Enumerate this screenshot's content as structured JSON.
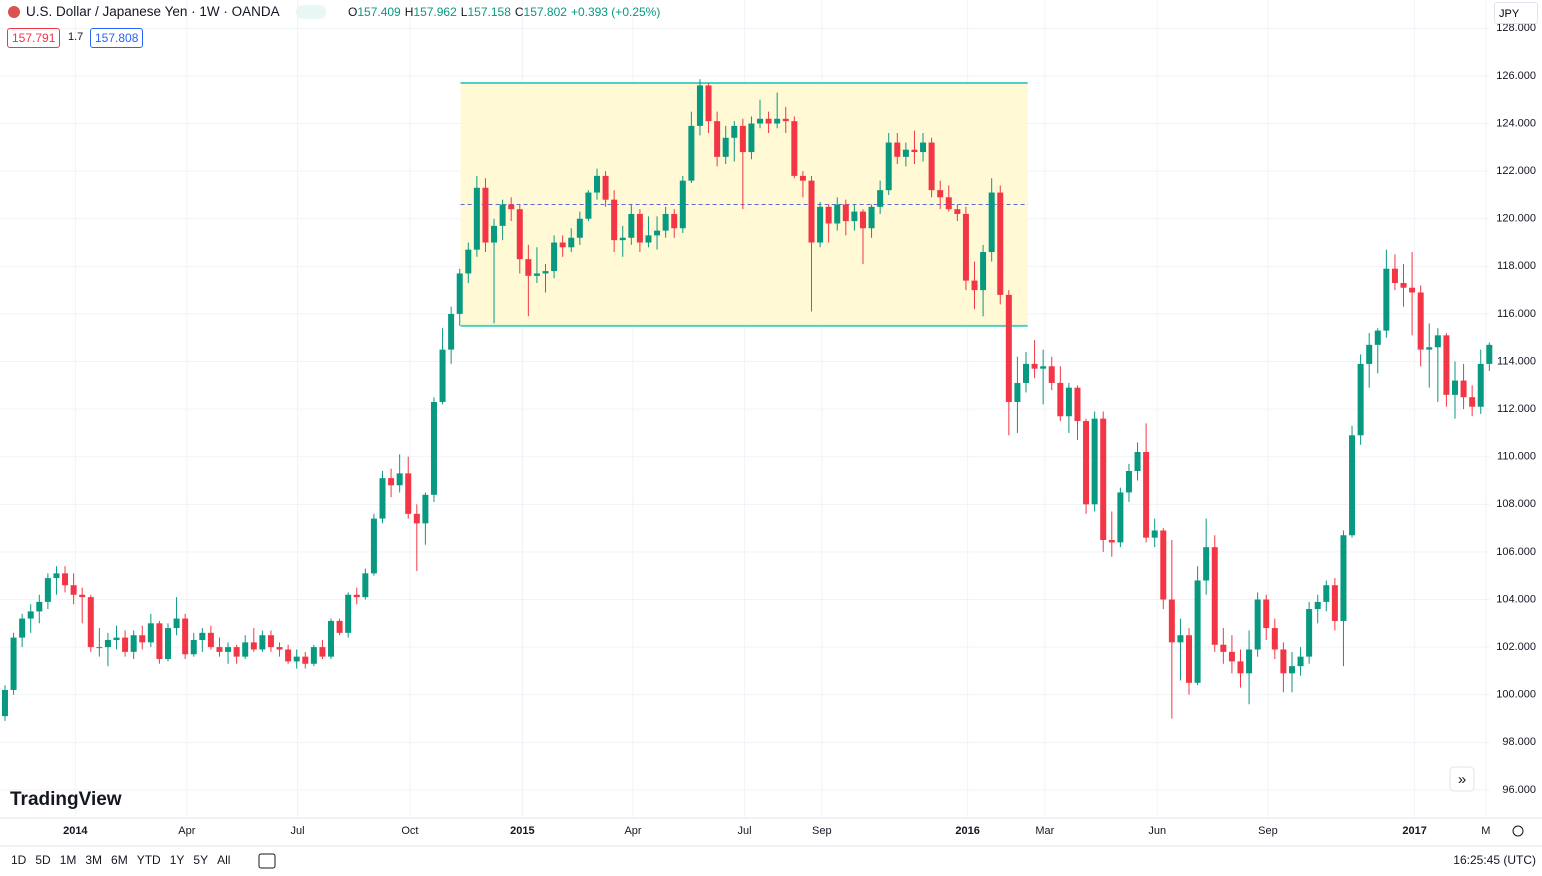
{
  "header": {
    "symbol": "U.S. Dollar / Japanese Yen · 1W · OANDA",
    "ohlc": [
      {
        "label": "O",
        "value": "157.409"
      },
      {
        "label": "H",
        "value": "157.962"
      },
      {
        "label": "L",
        "value": "157.158"
      },
      {
        "label": "C",
        "value": "157.802"
      }
    ],
    "change": "+0.393 (+0.25%)",
    "sell": "157.791",
    "spread": "1.7",
    "buy": "157.808",
    "currency": "JPY"
  },
  "chart_data": {
    "type": "candlestick",
    "up_color": "#089981",
    "down_color": "#f23645",
    "grid": true,
    "xlim": [
      -0.58,
      173.08
    ],
    "ylim": [
      94.82,
      129.19
    ],
    "yticks": [
      {
        "value": 96,
        "label": "96.000"
      },
      {
        "value": 98,
        "label": "98.000"
      },
      {
        "value": 100,
        "label": "100.000"
      },
      {
        "value": 102,
        "label": "102.000"
      },
      {
        "value": 104,
        "label": "104.000"
      },
      {
        "value": 106,
        "label": "106.000"
      },
      {
        "value": 108,
        "label": "108.000"
      },
      {
        "value": 110,
        "label": "110.000"
      },
      {
        "value": 112,
        "label": "112.000"
      },
      {
        "value": 114,
        "label": "114.000"
      },
      {
        "value": 116,
        "label": "116.000"
      },
      {
        "value": 118,
        "label": "118.000"
      },
      {
        "value": 120,
        "label": "120.000"
      },
      {
        "value": 122,
        "label": "122.000"
      },
      {
        "value": 124,
        "label": "124.000"
      },
      {
        "value": 126,
        "label": "126.000"
      },
      {
        "value": 128,
        "label": "128.000"
      }
    ],
    "xticks": [
      {
        "value": 8.2,
        "label": "2014"
      },
      {
        "value": 21.2,
        "label": "Apr"
      },
      {
        "value": 34.1,
        "label": "Jul"
      },
      {
        "value": 47.2,
        "label": "Oct"
      },
      {
        "value": 60.3,
        "label": "2015"
      },
      {
        "value": 73.2,
        "label": "Apr"
      },
      {
        "value": 86.2,
        "label": "Jul"
      },
      {
        "value": 95.2,
        "label": "Sep"
      },
      {
        "value": 112.2,
        "label": "2016"
      },
      {
        "value": 121.2,
        "label": "Mar"
      },
      {
        "value": 134.3,
        "label": "Jun"
      },
      {
        "value": 147.2,
        "label": "Sep"
      },
      {
        "value": 164.3,
        "label": "2017"
      },
      {
        "value": 172.6,
        "label": "M"
      }
    ],
    "range_box": {
      "start": 53.1,
      "end": 119.2,
      "top": 125.7,
      "bottom": 115.5,
      "mid": 120.6,
      "color": "#4dd0c6",
      "fill": "#fff9d6",
      "mid_color": "#5c6bd6"
    },
    "candles": [
      [
        99.1,
        100.4,
        98.9,
        100.2
      ],
      [
        100.2,
        102.6,
        100.0,
        102.4
      ],
      [
        102.4,
        103.4,
        102.0,
        103.2
      ],
      [
        103.2,
        103.8,
        102.6,
        103.5
      ],
      [
        103.5,
        104.2,
        103.0,
        103.9
      ],
      [
        103.9,
        105.1,
        103.6,
        104.9
      ],
      [
        104.9,
        105.4,
        104.2,
        105.1
      ],
      [
        105.1,
        105.4,
        104.3,
        104.6
      ],
      [
        104.6,
        105.1,
        103.8,
        104.2
      ],
      [
        104.2,
        104.5,
        103.0,
        104.1
      ],
      [
        104.1,
        104.2,
        101.8,
        102.0
      ],
      [
        102.0,
        102.8,
        101.6,
        102.0
      ],
      [
        102.0,
        102.6,
        101.2,
        102.3
      ],
      [
        102.3,
        102.9,
        101.9,
        102.4
      ],
      [
        102.4,
        102.7,
        101.6,
        101.8
      ],
      [
        101.8,
        102.7,
        101.5,
        102.5
      ],
      [
        102.5,
        102.9,
        101.9,
        102.2
      ],
      [
        102.2,
        103.4,
        102.0,
        103.0
      ],
      [
        103.0,
        103.1,
        101.3,
        101.5
      ],
      [
        101.5,
        103.0,
        101.4,
        102.8
      ],
      [
        102.8,
        104.1,
        102.5,
        103.2
      ],
      [
        103.2,
        103.4,
        101.5,
        101.7
      ],
      [
        101.7,
        102.6,
        101.6,
        102.3
      ],
      [
        102.3,
        102.8,
        101.8,
        102.6
      ],
      [
        102.6,
        102.9,
        101.9,
        102.0
      ],
      [
        102.0,
        102.4,
        101.6,
        101.8
      ],
      [
        101.8,
        102.2,
        101.3,
        102.0
      ],
      [
        102.0,
        102.1,
        101.3,
        101.6
      ],
      [
        101.6,
        102.5,
        101.5,
        102.2
      ],
      [
        102.2,
        102.8,
        101.8,
        101.9
      ],
      [
        101.9,
        102.7,
        101.8,
        102.5
      ],
      [
        102.5,
        102.7,
        101.8,
        102.0
      ],
      [
        102.0,
        102.2,
        101.6,
        101.9
      ],
      [
        101.9,
        102.1,
        101.3,
        101.4
      ],
      [
        101.4,
        101.9,
        101.1,
        101.6
      ],
      [
        101.6,
        101.8,
        101.1,
        101.3
      ],
      [
        101.3,
        102.1,
        101.2,
        102.0
      ],
      [
        102.0,
        102.3,
        101.5,
        101.6
      ],
      [
        101.6,
        103.2,
        101.5,
        103.1
      ],
      [
        103.1,
        103.2,
        102.5,
        102.6
      ],
      [
        102.6,
        104.3,
        102.4,
        104.2
      ],
      [
        104.2,
        104.5,
        103.8,
        104.1
      ],
      [
        104.1,
        105.3,
        104.0,
        105.1
      ],
      [
        105.1,
        107.6,
        105.0,
        107.4
      ],
      [
        107.4,
        109.4,
        107.2,
        109.1
      ],
      [
        109.1,
        109.5,
        108.3,
        108.8
      ],
      [
        108.8,
        110.1,
        108.5,
        109.3
      ],
      [
        109.3,
        110.0,
        107.4,
        107.6
      ],
      [
        107.6,
        108.0,
        105.2,
        107.2
      ],
      [
        107.2,
        108.5,
        106.3,
        108.4
      ],
      [
        108.4,
        112.5,
        108.1,
        112.3
      ],
      [
        112.3,
        115.4,
        112.2,
        114.5
      ],
      [
        114.5,
        116.3,
        113.9,
        116.0
      ],
      [
        116.0,
        117.9,
        115.5,
        117.7
      ],
      [
        117.7,
        119.0,
        117.3,
        118.7
      ],
      [
        118.7,
        121.8,
        118.4,
        121.3
      ],
      [
        121.3,
        121.7,
        118.6,
        119.0
      ],
      [
        119.0,
        120.0,
        115.6,
        119.7
      ],
      [
        119.7,
        120.8,
        119.1,
        120.6
      ],
      [
        120.6,
        120.9,
        119.9,
        120.4
      ],
      [
        120.4,
        120.6,
        117.7,
        118.3
      ],
      [
        118.3,
        118.9,
        115.9,
        117.6
      ],
      [
        117.6,
        118.8,
        117.3,
        117.7
      ],
      [
        117.7,
        118.1,
        116.9,
        117.8
      ],
      [
        117.8,
        119.3,
        117.5,
        119.0
      ],
      [
        119.0,
        119.3,
        118.4,
        118.8
      ],
      [
        118.8,
        119.6,
        118.6,
        119.2
      ],
      [
        119.2,
        120.3,
        118.9,
        120.0
      ],
      [
        120.0,
        121.2,
        119.9,
        121.1
      ],
      [
        121.1,
        122.1,
        120.8,
        121.8
      ],
      [
        121.8,
        122.0,
        120.5,
        120.8
      ],
      [
        120.8,
        121.2,
        118.6,
        119.1
      ],
      [
        119.1,
        119.7,
        118.4,
        119.2
      ],
      [
        119.2,
        120.6,
        118.9,
        120.2
      ],
      [
        120.2,
        120.4,
        118.6,
        119.0
      ],
      [
        119.0,
        120.1,
        118.8,
        119.3
      ],
      [
        119.3,
        120.1,
        118.7,
        119.5
      ],
      [
        119.5,
        120.5,
        119.2,
        120.2
      ],
      [
        120.2,
        120.4,
        119.2,
        119.6
      ],
      [
        119.6,
        121.8,
        119.4,
        121.6
      ],
      [
        121.6,
        124.5,
        121.5,
        123.9
      ],
      [
        123.9,
        125.86,
        123.5,
        125.6
      ],
      [
        125.6,
        125.7,
        123.6,
        124.1
      ],
      [
        124.1,
        124.5,
        122.2,
        122.6
      ],
      [
        122.6,
        123.9,
        122.3,
        123.4
      ],
      [
        123.4,
        124.1,
        122.4,
        123.9
      ],
      [
        123.9,
        124.2,
        120.4,
        122.8
      ],
      [
        122.8,
        124.3,
        122.5,
        124.0
      ],
      [
        124.0,
        125.0,
        123.8,
        124.2
      ],
      [
        124.2,
        124.5,
        123.6,
        124.0
      ],
      [
        124.0,
        125.3,
        123.8,
        124.2
      ],
      [
        124.2,
        124.7,
        123.6,
        124.1
      ],
      [
        124.1,
        124.3,
        121.7,
        121.8
      ],
      [
        121.8,
        122.0,
        120.9,
        121.6
      ],
      [
        121.6,
        121.8,
        116.1,
        119.0
      ],
      [
        119.0,
        120.7,
        118.8,
        120.5
      ],
      [
        120.5,
        120.6,
        119.0,
        119.8
      ],
      [
        119.8,
        120.9,
        119.5,
        120.6
      ],
      [
        120.6,
        120.8,
        119.3,
        119.9
      ],
      [
        119.9,
        120.6,
        119.5,
        120.3
      ],
      [
        120.3,
        120.4,
        118.1,
        119.6
      ],
      [
        119.6,
        120.6,
        119.2,
        120.5
      ],
      [
        120.5,
        121.6,
        120.2,
        121.2
      ],
      [
        121.2,
        123.6,
        121.0,
        123.2
      ],
      [
        123.2,
        123.6,
        122.3,
        122.6
      ],
      [
        122.6,
        123.2,
        122.2,
        122.9
      ],
      [
        122.9,
        123.7,
        122.3,
        122.8
      ],
      [
        122.8,
        123.6,
        122.4,
        123.2
      ],
      [
        123.2,
        123.4,
        120.9,
        121.2
      ],
      [
        121.2,
        121.6,
        120.4,
        120.9
      ],
      [
        120.9,
        121.4,
        120.3,
        120.4
      ],
      [
        120.4,
        120.6,
        119.9,
        120.2
      ],
      [
        120.2,
        120.5,
        117.0,
        117.4
      ],
      [
        117.4,
        118.2,
        116.2,
        117.0
      ],
      [
        117.0,
        118.9,
        115.9,
        118.6
      ],
      [
        118.6,
        121.7,
        118.2,
        121.1
      ],
      [
        121.1,
        121.4,
        116.4,
        116.8
      ],
      [
        116.8,
        117.0,
        110.9,
        112.3
      ],
      [
        112.3,
        114.2,
        111.0,
        113.1
      ],
      [
        113.1,
        114.4,
        112.7,
        113.9
      ],
      [
        113.9,
        114.9,
        113.3,
        113.7
      ],
      [
        113.7,
        114.5,
        112.2,
        113.8
      ],
      [
        113.8,
        114.2,
        112.8,
        113.1
      ],
      [
        113.1,
        113.8,
        111.5,
        111.7
      ],
      [
        111.7,
        113.1,
        111.0,
        112.9
      ],
      [
        112.9,
        113.0,
        110.7,
        111.5
      ],
      [
        111.5,
        111.6,
        107.6,
        108.0
      ],
      [
        108.0,
        111.9,
        107.7,
        111.6
      ],
      [
        111.6,
        111.9,
        106.0,
        106.5
      ],
      [
        106.5,
        107.7,
        105.8,
        106.4
      ],
      [
        106.4,
        108.7,
        106.2,
        108.5
      ],
      [
        108.5,
        109.7,
        108.1,
        109.4
      ],
      [
        109.4,
        110.6,
        109.0,
        110.2
      ],
      [
        110.2,
        111.4,
        106.4,
        106.6
      ],
      [
        106.6,
        107.4,
        106.2,
        106.9
      ],
      [
        106.9,
        107.0,
        103.6,
        104.0
      ],
      [
        104.0,
        106.5,
        99.0,
        102.2
      ],
      [
        102.2,
        103.2,
        100.6,
        102.5
      ],
      [
        102.5,
        102.8,
        100.0,
        100.5
      ],
      [
        100.5,
        105.4,
        100.4,
        104.8
      ],
      [
        104.8,
        107.4,
        104.2,
        106.2
      ],
      [
        106.2,
        106.7,
        101.8,
        102.1
      ],
      [
        102.1,
        102.8,
        101.3,
        101.8
      ],
      [
        101.8,
        102.5,
        100.9,
        101.4
      ],
      [
        101.4,
        101.9,
        100.3,
        100.9
      ],
      [
        100.9,
        102.7,
        99.6,
        101.9
      ],
      [
        101.9,
        104.3,
        101.6,
        104.0
      ],
      [
        104.0,
        104.2,
        102.3,
        102.8
      ],
      [
        102.8,
        103.2,
        101.5,
        101.9
      ],
      [
        101.9,
        102.2,
        100.1,
        100.9
      ],
      [
        100.9,
        101.8,
        100.1,
        101.2
      ],
      [
        101.2,
        102.0,
        100.8,
        101.6
      ],
      [
        101.6,
        103.9,
        101.3,
        103.6
      ],
      [
        103.6,
        104.2,
        103.0,
        103.9
      ],
      [
        103.9,
        104.8,
        103.5,
        104.6
      ],
      [
        104.6,
        104.9,
        102.7,
        103.1
      ],
      [
        103.1,
        106.9,
        101.2,
        106.7
      ],
      [
        106.7,
        111.3,
        106.6,
        110.9
      ],
      [
        110.9,
        114.3,
        110.5,
        113.9
      ],
      [
        113.9,
        115.2,
        112.9,
        114.7
      ],
      [
        114.7,
        115.4,
        113.5,
        115.3
      ],
      [
        115.3,
        118.7,
        115.0,
        117.9
      ],
      [
        117.9,
        118.5,
        117.0,
        117.3
      ],
      [
        117.3,
        118.1,
        116.3,
        117.1
      ],
      [
        117.1,
        118.6,
        115.1,
        116.9
      ],
      [
        116.9,
        117.2,
        113.8,
        114.5
      ],
      [
        114.5,
        115.6,
        112.9,
        114.6
      ],
      [
        114.6,
        115.4,
        112.3,
        115.1
      ],
      [
        115.1,
        115.2,
        112.1,
        112.6
      ],
      [
        112.6,
        114.0,
        111.6,
        113.2
      ],
      [
        113.2,
        113.9,
        112.0,
        112.5
      ],
      [
        112.5,
        113.0,
        111.7,
        112.1
      ],
      [
        112.1,
        114.5,
        111.8,
        113.9
      ],
      [
        113.9,
        114.8,
        113.6,
        114.7
      ]
    ]
  },
  "footer": {
    "logo": "TradingView",
    "ranges": [
      "1D",
      "5D",
      "1M",
      "3M",
      "6M",
      "YTD",
      "1Y",
      "5Y",
      "All"
    ],
    "time": "16:25:45 (UTC)"
  }
}
